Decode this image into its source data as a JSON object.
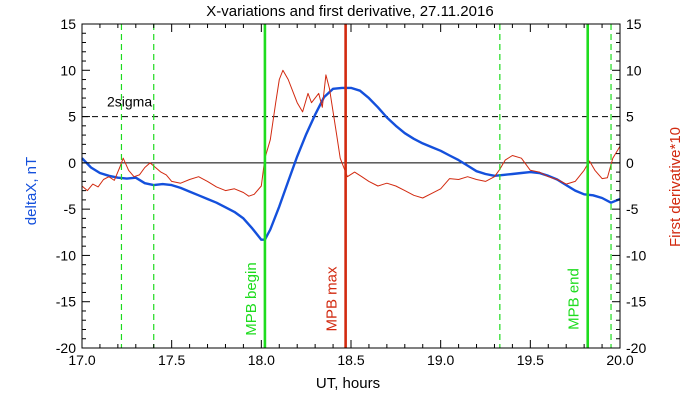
{
  "chart_data": {
    "type": "line",
    "title": "X-variations and first derivative, 27.11.2016",
    "xlabel": "UT, hours",
    "ylabel_left": "deltaX, nT",
    "ylabel_right": "First derivative*10",
    "xlim": [
      17.0,
      20.0
    ],
    "ylim": [
      -20,
      15
    ],
    "x_ticks": [
      "17.0",
      "17.5",
      "18.0",
      "18.5",
      "19.0",
      "19.5",
      "20.0"
    ],
    "y_ticks_left": [
      "-20",
      "-15",
      "-10",
      "-5",
      "0",
      "5",
      "10",
      "15"
    ],
    "y_ticks_right": [
      "-20",
      "-15",
      "-10",
      "-5",
      "0",
      "5",
      "10",
      "15"
    ],
    "colors": {
      "deltaX": "#1450dc",
      "derivative": "#d22a10",
      "mpb": "#1edc1e",
      "max": "#d22a10",
      "axis_left_label": "#1450dc",
      "axis_right_label": "#d22a10"
    },
    "threshold": {
      "label": "2sigma",
      "value": 5.0
    },
    "zero_line": 0,
    "vertical_lines": [
      {
        "x": 17.22,
        "style": "dashed",
        "color": "#1edc1e"
      },
      {
        "x": 17.4,
        "style": "dashed",
        "color": "#1edc1e"
      },
      {
        "x": 18.02,
        "style": "solid",
        "color": "#1edc1e",
        "label": "MPB begin"
      },
      {
        "x": 18.47,
        "style": "solid",
        "color": "#d22a10",
        "label": "MPB max"
      },
      {
        "x": 19.33,
        "style": "dashed",
        "color": "#1edc1e"
      },
      {
        "x": 19.82,
        "style": "solid",
        "color": "#1edc1e",
        "label": "MPB end"
      },
      {
        "x": 19.95,
        "style": "dashed",
        "color": "#1edc1e"
      }
    ],
    "series": [
      {
        "key": "deltaX",
        "axis": "left",
        "x": [
          17.0,
          17.05,
          17.1,
          17.15,
          17.2,
          17.25,
          17.3,
          17.35,
          17.4,
          17.45,
          17.5,
          17.55,
          17.6,
          17.65,
          17.7,
          17.75,
          17.8,
          17.85,
          17.9,
          17.95,
          18.0,
          18.02,
          18.05,
          18.1,
          18.15,
          18.2,
          18.25,
          18.3,
          18.35,
          18.4,
          18.45,
          18.5,
          18.55,
          18.6,
          18.65,
          18.7,
          18.75,
          18.8,
          18.85,
          18.9,
          18.95,
          19.0,
          19.05,
          19.1,
          19.15,
          19.2,
          19.25,
          19.3,
          19.35,
          19.4,
          19.45,
          19.5,
          19.55,
          19.6,
          19.65,
          19.7,
          19.75,
          19.8,
          19.85,
          19.9,
          19.95,
          20.0
        ],
        "y": [
          0.5,
          -0.5,
          -1.1,
          -1.4,
          -1.6,
          -1.7,
          -1.6,
          -2.2,
          -2.4,
          -2.3,
          -2.4,
          -2.7,
          -3.1,
          -3.5,
          -3.9,
          -4.3,
          -4.8,
          -5.3,
          -6.0,
          -7.1,
          -8.3,
          -8.3,
          -7.2,
          -4.7,
          -2.0,
          0.7,
          3.1,
          5.2,
          7.1,
          8.0,
          8.1,
          8.1,
          7.8,
          7.0,
          6.0,
          4.9,
          4.0,
          3.2,
          2.6,
          2.1,
          1.7,
          1.3,
          0.8,
          0.3,
          -0.3,
          -0.9,
          -1.2,
          -1.4,
          -1.3,
          -1.2,
          -1.1,
          -1.0,
          -1.1,
          -1.4,
          -1.8,
          -2.4,
          -3.0,
          -3.4,
          -3.5,
          -3.8,
          -4.3,
          -3.9
        ]
      },
      {
        "key": "derivative",
        "axis": "right",
        "x": [
          17.0,
          17.03,
          17.06,
          17.09,
          17.12,
          17.15,
          17.18,
          17.21,
          17.23,
          17.26,
          17.29,
          17.32,
          17.35,
          17.38,
          17.41,
          17.44,
          17.47,
          17.5,
          17.55,
          17.6,
          17.65,
          17.7,
          17.75,
          17.8,
          17.85,
          17.9,
          17.93,
          17.96,
          18.0,
          18.02,
          18.05,
          18.08,
          18.1,
          18.12,
          18.15,
          18.18,
          18.2,
          18.23,
          18.26,
          18.28,
          18.3,
          18.32,
          18.34,
          18.36,
          18.38,
          18.4,
          18.42,
          18.44,
          18.46,
          18.48,
          18.52,
          18.56,
          18.6,
          18.65,
          18.7,
          18.75,
          18.8,
          18.85,
          18.9,
          18.95,
          19.0,
          19.05,
          19.1,
          19.15,
          19.2,
          19.25,
          19.3,
          19.33,
          19.36,
          19.4,
          19.45,
          19.5,
          19.55,
          19.6,
          19.65,
          19.7,
          19.75,
          19.8,
          19.83,
          19.86,
          19.9,
          19.93,
          19.96,
          20.0
        ],
        "y": [
          -2.5,
          -3.0,
          -2.3,
          -2.6,
          -1.8,
          -1.5,
          -1.9,
          -0.5,
          0.5,
          -0.8,
          -1.5,
          -1.3,
          -0.5,
          0.0,
          -0.5,
          -1.0,
          -1.3,
          -2.0,
          -2.2,
          -1.8,
          -1.5,
          -2.0,
          -2.6,
          -3.0,
          -2.8,
          -3.2,
          -3.6,
          -3.4,
          -2.5,
          0.5,
          2.5,
          6.5,
          9.0,
          10.0,
          9.0,
          7.5,
          6.5,
          5.5,
          7.5,
          6.5,
          7.0,
          7.5,
          6.0,
          9.5,
          8.0,
          5.5,
          3.0,
          0.5,
          -0.5,
          -1.5,
          -1.0,
          -1.5,
          -2.0,
          -2.5,
          -2.2,
          -2.5,
          -3.0,
          -3.5,
          -3.8,
          -3.3,
          -2.8,
          -1.7,
          -1.8,
          -1.5,
          -1.8,
          -2.0,
          -1.5,
          -0.7,
          0.3,
          0.8,
          0.5,
          -0.8,
          -1.0,
          -1.5,
          -1.8,
          -2.3,
          -2.0,
          -0.8,
          0.2,
          -0.8,
          -1.7,
          -1.6,
          0.5,
          1.8
        ]
      }
    ]
  }
}
